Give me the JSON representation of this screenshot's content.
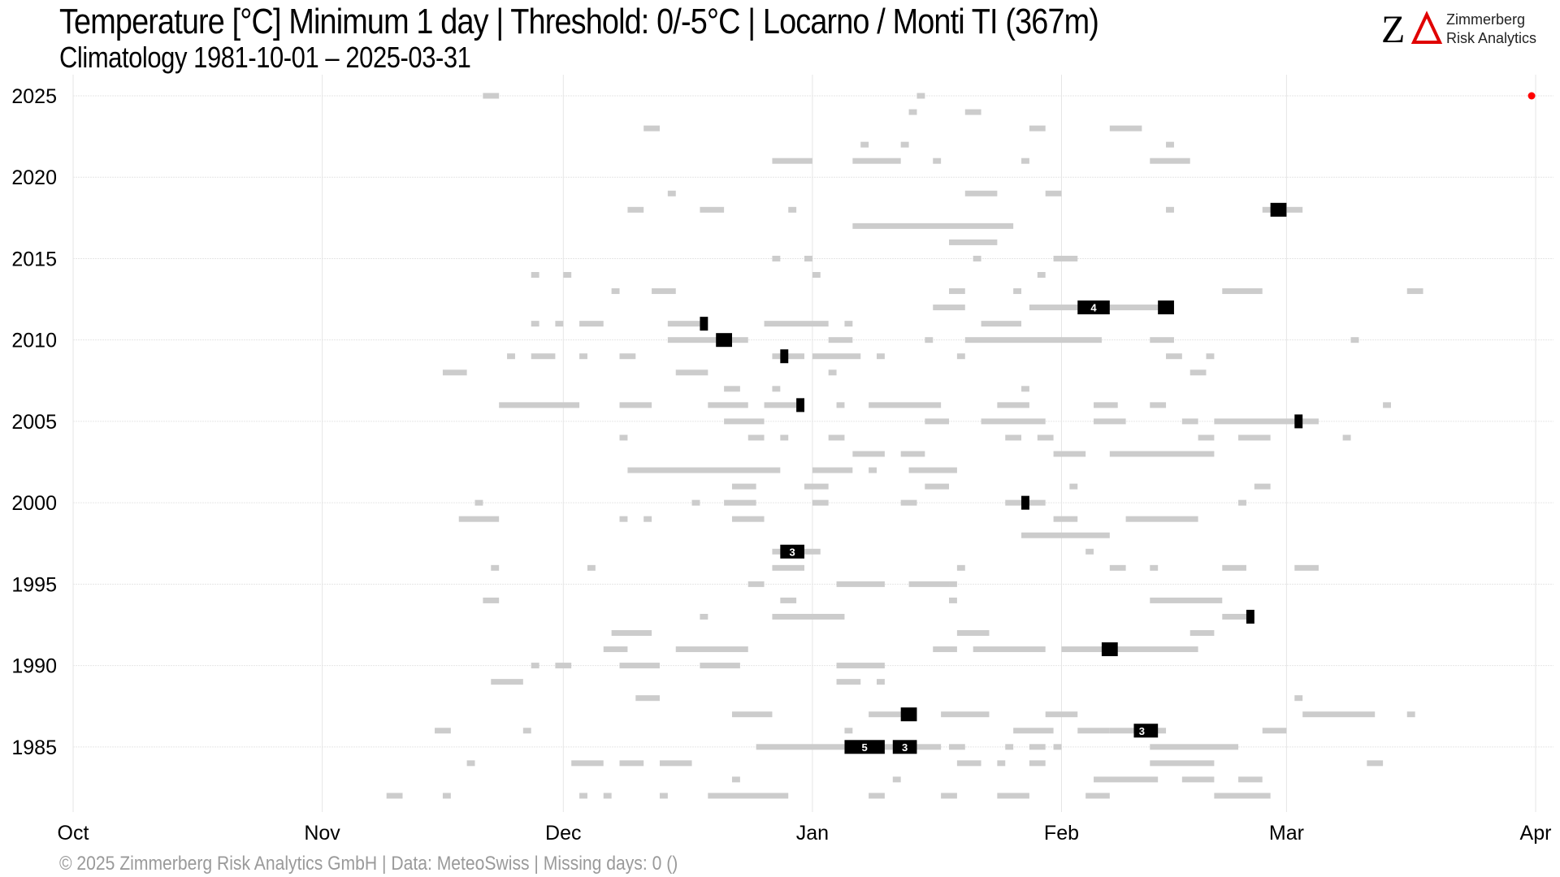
{
  "header": {
    "title": "Temperature [°C] Minimum 1 day | Threshold: 0/-5°C | Locarno / Monti  TI (367m)",
    "subtitle": "Climatology 1981-10-01 – 2025-03-31"
  },
  "logo": {
    "mark": "ZΔ",
    "line1": "Zimmerberg",
    "line2": "Risk Analytics"
  },
  "caption": "©  2025 Zimmerberg Risk Analytics GmbH | Data: MeteoSwiss | Missing days: 0 ()",
  "colors": {
    "below_0": "#cccccc",
    "below_minus5": "#000000",
    "current_marker": "#ff0000",
    "grid": "#e6e6e6"
  },
  "chart_data": {
    "type": "heatmap",
    "x_ticks": [
      "Oct",
      "Nov",
      "Dec",
      "Jan",
      "Feb",
      "Mar",
      "Apr"
    ],
    "x_tick_days": [
      0,
      31,
      61,
      92,
      123,
      151,
      182
    ],
    "y_ticks": [
      1985,
      1990,
      1995,
      2000,
      2005,
      2010,
      2015,
      2020,
      2025
    ],
    "ylim": [
      1981,
      2025
    ],
    "xlim_days": [
      0,
      182
    ],
    "grid": true,
    "seasons": [
      {
        "year": 2025,
        "cold": [
          [
            51,
            52
          ],
          [
            105,
            105
          ]
        ],
        "very_cold": []
      },
      {
        "year": 2024,
        "cold": [
          [
            104,
            104
          ],
          [
            111,
            112
          ]
        ],
        "very_cold": []
      },
      {
        "year": 2023,
        "cold": [
          [
            71,
            72
          ],
          [
            119,
            120
          ],
          [
            129,
            132
          ]
        ],
        "very_cold": []
      },
      {
        "year": 2022,
        "cold": [
          [
            98,
            98
          ],
          [
            103,
            103
          ],
          [
            136,
            136
          ]
        ],
        "very_cold": []
      },
      {
        "year": 2021,
        "cold": [
          [
            87,
            91
          ],
          [
            97,
            102
          ],
          [
            107,
            107
          ],
          [
            118,
            118
          ],
          [
            134,
            138
          ]
        ],
        "very_cold": []
      },
      {
        "year": 2019,
        "cold": [
          [
            74,
            74
          ],
          [
            111,
            114
          ],
          [
            121,
            122
          ]
        ],
        "very_cold": []
      },
      {
        "year": 2018,
        "cold": [
          [
            69,
            70
          ],
          [
            78,
            80
          ],
          [
            89,
            89
          ],
          [
            136,
            136
          ],
          [
            148,
            152
          ]
        ],
        "very_cold": [
          [
            149,
            150
          ]
        ]
      },
      {
        "year": 2017,
        "cold": [
          [
            97,
            116
          ]
        ],
        "very_cold": []
      },
      {
        "year": 2016,
        "cold": [
          [
            109,
            114
          ]
        ],
        "very_cold": []
      },
      {
        "year": 2015,
        "cold": [
          [
            87,
            87
          ],
          [
            91,
            91
          ],
          [
            112,
            112
          ],
          [
            122,
            124
          ]
        ],
        "very_cold": []
      },
      {
        "year": 2014,
        "cold": [
          [
            57,
            57
          ],
          [
            61,
            61
          ],
          [
            92,
            92
          ],
          [
            120,
            120
          ]
        ],
        "very_cold": []
      },
      {
        "year": 2013,
        "cold": [
          [
            67,
            67
          ],
          [
            72,
            74
          ],
          [
            109,
            110
          ],
          [
            117,
            117
          ],
          [
            143,
            147
          ],
          [
            166,
            167
          ]
        ],
        "very_cold": []
      },
      {
        "year": 2012,
        "cold": [
          [
            107,
            110
          ],
          [
            119,
            136
          ]
        ],
        "very_cold": [
          [
            125,
            128
          ],
          [
            135,
            136
          ]
        ],
        "labels": [
          {
            "day": 126.5,
            "text": "4"
          }
        ]
      },
      {
        "year": 2011,
        "cold": [
          [
            57,
            57
          ],
          [
            60,
            60
          ],
          [
            63,
            65
          ],
          [
            74,
            77
          ],
          [
            86,
            93
          ],
          [
            96,
            96
          ],
          [
            113,
            117
          ]
        ],
        "very_cold": [
          [
            78,
            78
          ]
        ]
      },
      {
        "year": 2010,
        "cold": [
          [
            74,
            83
          ],
          [
            94,
            96
          ],
          [
            106,
            106
          ],
          [
            111,
            127
          ],
          [
            134,
            136
          ],
          [
            159,
            159
          ]
        ],
        "very_cold": [
          [
            80,
            81
          ]
        ]
      },
      {
        "year": 2009,
        "cold": [
          [
            54,
            54
          ],
          [
            57,
            59
          ],
          [
            63,
            63
          ],
          [
            68,
            69
          ],
          [
            87,
            90
          ],
          [
            92,
            97
          ],
          [
            100,
            100
          ],
          [
            110,
            110
          ],
          [
            136,
            137
          ],
          [
            141,
            141
          ]
        ],
        "very_cold": [
          [
            88,
            88
          ]
        ]
      },
      {
        "year": 2008,
        "cold": [
          [
            46,
            48
          ],
          [
            75,
            78
          ],
          [
            94,
            94
          ],
          [
            139,
            140
          ]
        ],
        "very_cold": []
      },
      {
        "year": 2007,
        "cold": [
          [
            81,
            82
          ],
          [
            87,
            87
          ],
          [
            118,
            118
          ]
        ],
        "very_cold": []
      },
      {
        "year": 2006,
        "cold": [
          [
            53,
            62
          ],
          [
            68,
            71
          ],
          [
            79,
            83
          ],
          [
            86,
            89
          ],
          [
            95,
            95
          ],
          [
            99,
            107
          ],
          [
            115,
            118
          ],
          [
            127,
            129
          ],
          [
            134,
            135
          ],
          [
            163,
            163
          ]
        ],
        "very_cold": [
          [
            90,
            90
          ]
        ]
      },
      {
        "year": 2005,
        "cold": [
          [
            81,
            85
          ],
          [
            106,
            108
          ],
          [
            113,
            120
          ],
          [
            127,
            130
          ],
          [
            138,
            139
          ],
          [
            142,
            154
          ]
        ],
        "very_cold": [
          [
            152,
            152
          ]
        ]
      },
      {
        "year": 2004,
        "cold": [
          [
            68,
            68
          ],
          [
            84,
            85
          ],
          [
            88,
            88
          ],
          [
            94,
            95
          ],
          [
            116,
            117
          ],
          [
            120,
            121
          ],
          [
            140,
            141
          ],
          [
            145,
            148
          ],
          [
            158,
            158
          ]
        ],
        "very_cold": []
      },
      {
        "year": 2003,
        "cold": [
          [
            97,
            100
          ],
          [
            103,
            105
          ],
          [
            122,
            125
          ],
          [
            129,
            141
          ]
        ],
        "very_cold": []
      },
      {
        "year": 2002,
        "cold": [
          [
            69,
            87
          ],
          [
            92,
            96
          ],
          [
            99,
            99
          ],
          [
            104,
            109
          ]
        ],
        "very_cold": []
      },
      {
        "year": 2001,
        "cold": [
          [
            82,
            84
          ],
          [
            91,
            93
          ],
          [
            106,
            108
          ],
          [
            124,
            124
          ],
          [
            147,
            148
          ]
        ],
        "very_cold": []
      },
      {
        "year": 2000,
        "cold": [
          [
            50,
            50
          ],
          [
            77,
            77
          ],
          [
            81,
            84
          ],
          [
            92,
            93
          ],
          [
            103,
            104
          ],
          [
            116,
            120
          ],
          [
            145,
            145
          ]
        ],
        "very_cold": [
          [
            118,
            118
          ]
        ]
      },
      {
        "year": 1999,
        "cold": [
          [
            48,
            52
          ],
          [
            68,
            68
          ],
          [
            71,
            71
          ],
          [
            82,
            85
          ],
          [
            122,
            124
          ],
          [
            131,
            139
          ]
        ],
        "very_cold": []
      },
      {
        "year": 1998,
        "cold": [
          [
            118,
            128
          ]
        ],
        "very_cold": []
      },
      {
        "year": 1997,
        "cold": [
          [
            87,
            92
          ],
          [
            126,
            126
          ]
        ],
        "very_cold": [
          [
            88,
            90
          ]
        ],
        "labels": [
          {
            "day": 89,
            "text": "3"
          }
        ]
      },
      {
        "year": 1996,
        "cold": [
          [
            52,
            52
          ],
          [
            64,
            64
          ],
          [
            87,
            90
          ],
          [
            110,
            110
          ],
          [
            129,
            130
          ],
          [
            134,
            134
          ],
          [
            143,
            145
          ],
          [
            152,
            154
          ]
        ],
        "very_cold": []
      },
      {
        "year": 1995,
        "cold": [
          [
            84,
            85
          ],
          [
            95,
            100
          ],
          [
            104,
            108
          ],
          [
            109,
            109
          ]
        ],
        "very_cold": []
      },
      {
        "year": 1994,
        "cold": [
          [
            51,
            52
          ],
          [
            88,
            89
          ],
          [
            109,
            109
          ],
          [
            134,
            142
          ]
        ],
        "very_cold": []
      },
      {
        "year": 1993,
        "cold": [
          [
            78,
            78
          ],
          [
            87,
            95
          ],
          [
            143,
            146
          ]
        ],
        "very_cold": [
          [
            146,
            146
          ]
        ]
      },
      {
        "year": 1992,
        "cold": [
          [
            67,
            71
          ],
          [
            110,
            113
          ],
          [
            139,
            141
          ]
        ],
        "very_cold": []
      },
      {
        "year": 1991,
        "cold": [
          [
            66,
            68
          ],
          [
            75,
            83
          ],
          [
            107,
            109
          ],
          [
            112,
            120
          ],
          [
            123,
            139
          ]
        ],
        "very_cold": [
          [
            128,
            129
          ]
        ]
      },
      {
        "year": 1990,
        "cold": [
          [
            57,
            57
          ],
          [
            60,
            61
          ],
          [
            68,
            72
          ],
          [
            78,
            82
          ],
          [
            95,
            100
          ]
        ],
        "very_cold": []
      },
      {
        "year": 1989,
        "cold": [
          [
            52,
            55
          ],
          [
            95,
            97
          ],
          [
            100,
            100
          ]
        ],
        "very_cold": []
      },
      {
        "year": 1988,
        "cold": [
          [
            70,
            72
          ],
          [
            152,
            152
          ]
        ],
        "very_cold": []
      },
      {
        "year": 1987,
        "cold": [
          [
            82,
            86
          ],
          [
            99,
            103
          ],
          [
            108,
            113
          ],
          [
            121,
            124
          ],
          [
            153,
            161
          ],
          [
            166,
            166
          ]
        ],
        "very_cold": [
          [
            103,
            104
          ]
        ]
      },
      {
        "year": 1986,
        "cold": [
          [
            45,
            46
          ],
          [
            56,
            56
          ],
          [
            96,
            96
          ],
          [
            117,
            121
          ],
          [
            125,
            128
          ],
          [
            129,
            135
          ],
          [
            148,
            150
          ]
        ],
        "very_cold": [
          [
            132,
            134
          ]
        ],
        "labels": [
          {
            "day": 132.5,
            "text": "3"
          }
        ]
      },
      {
        "year": 1985,
        "cold": [
          [
            85,
            107
          ],
          [
            109,
            110
          ],
          [
            116,
            116
          ],
          [
            119,
            120
          ],
          [
            122,
            122
          ],
          [
            134,
            144
          ]
        ],
        "very_cold": [
          [
            96,
            100
          ],
          [
            102,
            104
          ]
        ],
        "labels": [
          {
            "day": 98,
            "text": "5"
          },
          {
            "day": 103,
            "text": "3"
          }
        ]
      },
      {
        "year": 1984,
        "cold": [
          [
            49,
            49
          ],
          [
            62,
            65
          ],
          [
            68,
            70
          ],
          [
            73,
            76
          ],
          [
            110,
            112
          ],
          [
            115,
            115
          ],
          [
            119,
            120
          ],
          [
            134,
            141
          ],
          [
            161,
            162
          ]
        ],
        "very_cold": []
      },
      {
        "year": 1983,
        "cold": [
          [
            82,
            82
          ],
          [
            102,
            102
          ],
          [
            127,
            134
          ],
          [
            138,
            141
          ],
          [
            145,
            147
          ]
        ],
        "very_cold": []
      },
      {
        "year": 1982,
        "cold": [
          [
            39,
            40
          ],
          [
            46,
            46
          ],
          [
            63,
            63
          ],
          [
            66,
            66
          ],
          [
            73,
            73
          ],
          [
            79,
            88
          ],
          [
            99,
            100
          ],
          [
            108,
            109
          ],
          [
            115,
            118
          ],
          [
            126,
            128
          ],
          [
            142,
            148
          ]
        ],
        "very_cold": []
      }
    ],
    "current_marker": {
      "year": 2025,
      "day": 181.5
    }
  }
}
